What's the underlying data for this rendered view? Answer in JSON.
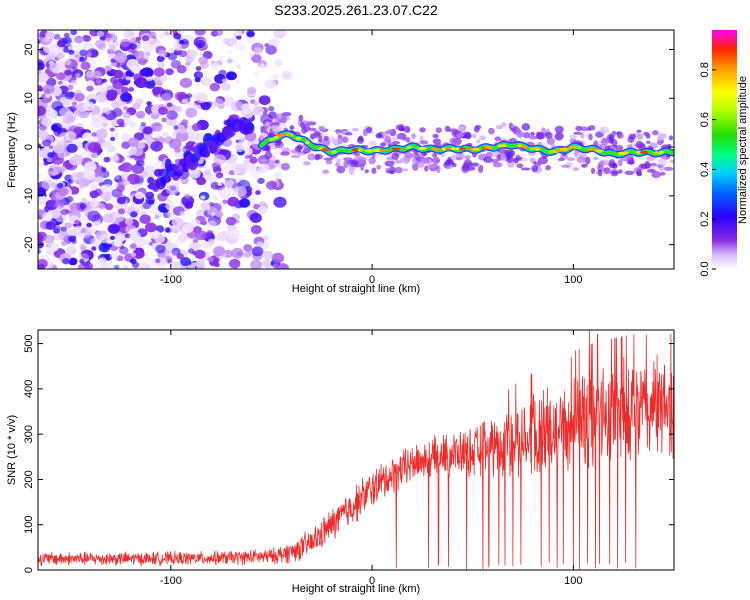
{
  "title": "S233.2025.261.23.07.C22",
  "chart_data": [
    {
      "type": "heatmap",
      "id": "spectrogram",
      "xlabel": "Height of straight line (km)",
      "ylabel": "Frequency (Hz)",
      "xlim": [
        -166,
        150
      ],
      "ylim": [
        -25,
        24
      ],
      "xticks": [
        -100,
        0,
        100
      ],
      "yticks": [
        -20,
        -10,
        0,
        10,
        20
      ],
      "colorbar": {
        "label": "Normalized spectral amplitude",
        "range": [
          0,
          0.96
        ],
        "ticks": [
          0.0,
          0.2,
          0.4,
          0.6,
          0.8
        ]
      },
      "noise_region": {
        "x": [
          -166,
          -40
        ],
        "freq_range": [
          -25,
          24
        ],
        "amplitude": [
          0.02,
          0.25
        ]
      },
      "ramp_trace": [
        {
          "x": -110,
          "freq": -7
        },
        {
          "x": -95,
          "freq": -4
        },
        {
          "x": -85,
          "freq": -1
        },
        {
          "x": -75,
          "freq": 2
        },
        {
          "x": -68,
          "freq": 5
        },
        {
          "x": -60,
          "freq": 3
        }
      ],
      "signal_trace": [
        {
          "x": -55,
          "freq": 0.5
        },
        {
          "x": -50,
          "freq": 1.5
        },
        {
          "x": -45,
          "freq": 2.5
        },
        {
          "x": -40,
          "freq": 2.5
        },
        {
          "x": -35,
          "freq": 1.5
        },
        {
          "x": -28,
          "freq": 0
        },
        {
          "x": -20,
          "freq": -1
        },
        {
          "x": -10,
          "freq": -0.5
        },
        {
          "x": 0,
          "freq": -0.8
        },
        {
          "x": 10,
          "freq": -0.5
        },
        {
          "x": 20,
          "freq": 0
        },
        {
          "x": 30,
          "freq": -0.5
        },
        {
          "x": 40,
          "freq": -0.3
        },
        {
          "x": 50,
          "freq": -0.5
        },
        {
          "x": 60,
          "freq": 0
        },
        {
          "x": 70,
          "freq": 0.5
        },
        {
          "x": 80,
          "freq": -0.3
        },
        {
          "x": 90,
          "freq": -1
        },
        {
          "x": 100,
          "freq": 0
        },
        {
          "x": 110,
          "freq": -0.5
        },
        {
          "x": 120,
          "freq": -1.5
        },
        {
          "x": 130,
          "freq": -1
        },
        {
          "x": 140,
          "freq": -1.2
        },
        {
          "x": 150,
          "freq": -1
        }
      ]
    },
    {
      "type": "line",
      "id": "snr",
      "xlabel": "Height of straight line (km)",
      "ylabel": "SNR (10 * v/v)",
      "xlim": [
        -166,
        150
      ],
      "ylim": [
        0,
        530
      ],
      "xticks": [
        -100,
        0,
        100
      ],
      "yticks": [
        0,
        100,
        200,
        300,
        400,
        500
      ],
      "color": "#ee2b2b",
      "series": [
        {
          "name": "SNR",
          "envelope_x": [
            -166,
            -120,
            -80,
            -50,
            -40,
            -30,
            -20,
            -10,
            0,
            10,
            20,
            30,
            40,
            50,
            60,
            70,
            80,
            90,
            100,
            110,
            120,
            130,
            140,
            150
          ],
          "envelope_mean": [
            25,
            25,
            26,
            30,
            40,
            60,
            100,
            140,
            180,
            210,
            235,
            250,
            255,
            260,
            270,
            290,
            300,
            310,
            320,
            330,
            340,
            350,
            355,
            360
          ],
          "envelope_spread": [
            12,
            12,
            12,
            14,
            20,
            25,
            30,
            35,
            35,
            35,
            35,
            35,
            40,
            45,
            55,
            65,
            75,
            85,
            90,
            95,
            95,
            95,
            90,
            90
          ],
          "peaks": [
            {
              "x": 99,
              "y": 470
            },
            {
              "x": 108,
              "y": 530
            },
            {
              "x": 112,
              "y": 520
            },
            {
              "x": 125,
              "y": 470
            },
            {
              "x": 140,
              "y": 460
            }
          ],
          "dropouts": [
            12,
            28,
            33,
            38,
            47,
            55,
            58,
            63,
            66,
            70,
            74,
            79,
            84,
            88,
            92,
            95,
            100,
            103,
            107,
            111,
            113,
            118,
            122,
            126,
            131
          ]
        }
      ]
    }
  ]
}
